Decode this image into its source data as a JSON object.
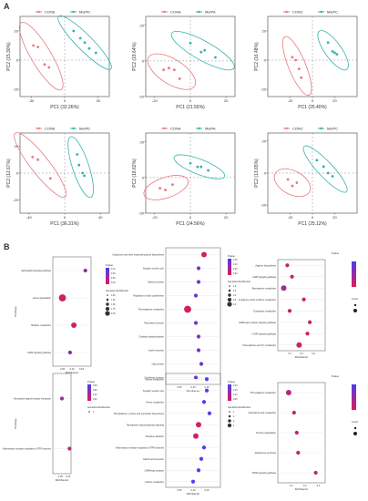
{
  "figure": {
    "panel_a_label": "A",
    "panel_b_label": "B"
  },
  "chart_data": [
    {
      "id": "pca1",
      "type": "scatter",
      "legend": [
        "CONE",
        "MeiPD"
      ],
      "colors": [
        "#e8787a",
        "#2fb5a6"
      ],
      "xlabel": "PC1 (32.26%)",
      "ylabel": "PC2 (15.30%)",
      "xlim": [
        -40,
        40
      ],
      "ylim": [
        -25,
        30
      ],
      "xticks": [
        "-30",
        "0",
        "30"
      ],
      "yticks": [
        "-20",
        "0",
        "20"
      ],
      "series": [
        {
          "name": "CONE",
          "x": [
            -28,
            -24,
            -18,
            -14
          ],
          "y": [
            10,
            9,
            -3,
            -5
          ]
        },
        {
          "name": "MeiPD",
          "x": [
            8,
            14,
            18,
            22,
            28
          ],
          "y": [
            20,
            15,
            12,
            8,
            5
          ]
        }
      ]
    },
    {
      "id": "pca2",
      "type": "scatter",
      "legend": [
        "CONA",
        "MeiPA"
      ],
      "colors": [
        "#e8787a",
        "#2fb5a6"
      ],
      "xlabel": "PC1 (21.55%)",
      "ylabel": "PC2 (19.64%)",
      "xlim": [
        -25,
        25
      ],
      "ylim": [
        -20,
        25
      ],
      "xticks": [
        "-20",
        "0",
        "20"
      ],
      "yticks": [
        "-20",
        "0",
        "20"
      ],
      "series": [
        {
          "name": "CONA",
          "x": [
            -15,
            -12,
            -9,
            -6
          ],
          "y": [
            -5,
            -4,
            -5,
            -10
          ]
        },
        {
          "name": "MeiPA",
          "x": [
            0,
            6,
            8,
            14
          ],
          "y": [
            10,
            5,
            6,
            2
          ]
        }
      ]
    },
    {
      "id": "pca3",
      "type": "scatter",
      "legend": [
        "CONC",
        "MeiPC"
      ],
      "colors": [
        "#e8787a",
        "#2fb5a6"
      ],
      "xlabel": "PC1 (25.40%)",
      "ylabel": "PC2 (16.48%)",
      "xlim": [
        -40,
        40
      ],
      "ylim": [
        -25,
        30
      ],
      "xticks": [
        "-20",
        "0",
        "20"
      ],
      "yticks": [
        "-20",
        "0",
        "20"
      ],
      "series": [
        {
          "name": "CONC",
          "x": [
            -18,
            -15,
            -12,
            -10
          ],
          "y": [
            2,
            0,
            -6,
            -12
          ]
        },
        {
          "name": "MeiPC",
          "x": [
            14,
            18,
            20,
            22
          ],
          "y": [
            12,
            6,
            5,
            4
          ]
        }
      ]
    },
    {
      "id": "pca4",
      "type": "scatter",
      "legend": [
        "CONE",
        "MeiPD"
      ],
      "colors": [
        "#e8787a",
        "#2fb5a6"
      ],
      "xlabel": "PC1 (36.31%)",
      "ylabel": "PC2 (12.67%)",
      "xlim": [
        -50,
        50
      ],
      "ylim": [
        -30,
        30
      ],
      "xticks": [
        "-40",
        "0",
        "40"
      ],
      "yticks": [
        "-20",
        "0",
        "20"
      ],
      "series": [
        {
          "name": "CONE",
          "x": [
            -36,
            -30,
            -16
          ],
          "y": [
            12,
            10,
            -4
          ]
        },
        {
          "name": "MeiPD",
          "x": [
            14,
            16,
            20,
            22
          ],
          "y": [
            14,
            6,
            0,
            -2
          ]
        }
      ]
    },
    {
      "id": "pca5",
      "type": "scatter",
      "legend": [
        "CONA",
        "MeiPA"
      ],
      "colors": [
        "#e8787a",
        "#2fb5a6"
      ],
      "xlabel": "PC1 (24.56%)",
      "ylabel": "PC2 (18.62%)",
      "xlim": [
        -25,
        25
      ],
      "ylim": [
        -20,
        25
      ],
      "xticks": [
        "-20",
        "0",
        "20"
      ],
      "yticks": [
        "-20",
        "0",
        "20"
      ],
      "series": [
        {
          "name": "CONA",
          "x": [
            -17,
            -14,
            -10
          ],
          "y": [
            -6,
            -7,
            -4
          ]
        },
        {
          "name": "MeiPA",
          "x": [
            0,
            4,
            6,
            10
          ],
          "y": [
            8,
            6,
            6,
            4
          ]
        }
      ]
    },
    {
      "id": "pca6",
      "type": "scatter",
      "legend": [
        "CONC",
        "MeiPC"
      ],
      "colors": [
        "#e8787a",
        "#2fb5a6"
      ],
      "xlabel": "PC1 (25.12%)",
      "ylabel": "PC2 (13.65%)",
      "xlim": [
        -40,
        40
      ],
      "ylim": [
        -25,
        25
      ],
      "xticks": [
        "-20",
        "0",
        "20"
      ],
      "yticks": [
        "-20",
        "0",
        "20"
      ],
      "series": [
        {
          "name": "CONC",
          "x": [
            -22,
            -18,
            -14
          ],
          "y": [
            -4,
            -8,
            -6
          ]
        },
        {
          "name": "MeiPC",
          "x": [
            4,
            10,
            14,
            18
          ],
          "y": [
            8,
            4,
            0,
            -2
          ]
        }
      ]
    },
    {
      "id": "bub1",
      "type": "scatter",
      "subtype": "bubble",
      "xlabel": "RichFactor",
      "ylabel": "Pathway",
      "xticks": [
        "0.05",
        "0.10",
        "0.15"
      ],
      "xlim": [
        0.0,
        0.2
      ],
      "categories": [
        "Sphingolipid signaling pathway",
        "Lysine degradation",
        "Histidine metabolism",
        "cAMP signaling pathway"
      ],
      "values": [
        0.17,
        0.05,
        0.11,
        0.09
      ],
      "sizes": [
        1,
        3,
        2,
        1
      ],
      "pvalue": [
        0.1,
        0.02,
        0.03,
        0.12
      ],
      "legend_title_color": "Pvalue",
      "legend_title_size": "GeneNumberMember",
      "color_legend_ticks": [
        "0.12",
        "0.09",
        "0.06",
        "0.03"
      ],
      "size_legend_ticks": [
        "1.00",
        "1.25",
        "1.50",
        "1.75",
        "2.00"
      ]
    },
    {
      "id": "bub2",
      "type": "scatter",
      "subtype": "bubble",
      "xlabel": "RichFactor",
      "ylabel": "",
      "xticks": [
        "0.05",
        "0.10",
        "0.15"
      ],
      "xlim": [
        0.0,
        0.2
      ],
      "categories": [
        "Ubiquinone and other terpenoid-quinone biosynthesis",
        "Synaptic vesicle cycle",
        "Gastric secretion",
        "Regulation of actin cytoskeleton",
        "Phenylalanine metabolism",
        "Pancreatic secretion",
        "Oxidative phosphorylation",
        "Insulin secretion",
        "Gap junction",
        "Cholinergic synapse"
      ],
      "values": [
        0.14,
        0.12,
        0.12,
        0.11,
        0.08,
        0.11,
        0.12,
        0.12,
        0.13,
        0.11
      ],
      "sizes": [
        2,
        1,
        1,
        1,
        3,
        1,
        1,
        1,
        1,
        1
      ],
      "pvalue": [
        0.02,
        0.15,
        0.15,
        0.16,
        0.01,
        0.15,
        0.14,
        0.15,
        0.16,
        0.16
      ],
      "legend_title_color": "Pvalue",
      "legend_title_size": "GeneNumberMember",
      "color_legend_ticks": [
        "0.15",
        "0.10",
        "0.05",
        "0.00"
      ],
      "size_legend_ticks": [
        "1.0",
        "1.5",
        "2.0",
        "2.5",
        "3.0"
      ]
    },
    {
      "id": "bub3",
      "type": "scatter",
      "subtype": "bubble",
      "xlabel": "RichFactor",
      "ylabel": "",
      "xticks": [
        "0.1",
        "0.2",
        "0.3"
      ],
      "xlim": [
        0.0,
        0.4
      ],
      "categories": [
        "Arginine biosynthesis",
        "cAMP signaling pathway",
        "Beta-alanine metabolism",
        "D-Arginine and D-ornithine metabolism",
        "Tryptophan metabolism",
        "GABAergic synapse signaling pathway",
        "mTOR signaling pathway",
        "Phenylalanine and Tyr metabolism"
      ],
      "values": [
        0.08,
        0.12,
        0.05,
        0.22,
        0.1,
        0.27,
        0.25,
        0.18
      ],
      "sizes": [
        1,
        1,
        2,
        1,
        1,
        1,
        1,
        2
      ],
      "pvalue": [
        0.05,
        0.05,
        0.08,
        0.02,
        0.03,
        0.02,
        0.02,
        0.03
      ],
      "legend_title_color": "Pvalue",
      "legend_title_size": "Count",
      "color_legend_ticks": [],
      "size_legend_ticks": []
    },
    {
      "id": "bub4",
      "type": "scatter",
      "subtype": "bubble",
      "xlabel": "RichFactor",
      "ylabel": "Pathway",
      "xticks": [
        "0.05",
        "0.10"
      ],
      "xlim": [
        0.0,
        0.12
      ],
      "categories": [
        "Neuroactive ligand-receptor interaction",
        "Inflammatory mediator regulation of TRP channels"
      ],
      "values": [
        0.06,
        0.11
      ],
      "sizes": [
        1,
        1
      ],
      "pvalue": [
        0.1,
        0.05
      ],
      "legend_title_color": "Pvalue",
      "legend_title_size": "GeneNumberMember",
      "color_legend_ticks": [
        "0.08",
        "0.06",
        "0.04",
        "0.02"
      ],
      "size_legend_ticks": [
        "1"
      ]
    },
    {
      "id": "bub5",
      "type": "scatter",
      "subtype": "bubble",
      "xlabel": "RichFactor",
      "ylabel": "",
      "xticks": [
        "0.05",
        "0.10",
        "0.15"
      ],
      "xlim": [
        0.0,
        0.2
      ],
      "categories": [
        "Taurine metabolism",
        "Synaptic vesicle cycle",
        "Purine metabolism",
        "Phenylalanine, tyrosine and tryptophan biosynthesis",
        "Retrograde endocannabinoid signaling",
        "Morphine addiction",
        "Inflammatory mediator regulation of TRP channels",
        "Gastric acid secretion",
        "GABAergic synapse",
        "Carbon metabolism"
      ],
      "values": [
        0.15,
        0.15,
        0.14,
        0.16,
        0.12,
        0.11,
        0.14,
        0.13,
        0.12,
        0.1
      ],
      "sizes": [
        1,
        1,
        1,
        1,
        2,
        2,
        1,
        1,
        1,
        1
      ],
      "pvalue": [
        0.2,
        0.2,
        0.2,
        0.18,
        0.01,
        0.02,
        0.2,
        0.2,
        0.2,
        0.21
      ],
      "legend_title_color": "Pvalue",
      "legend_title_size": "GeneNumberMember",
      "color_legend_ticks": [
        "0.20",
        "0.15",
        "0.10",
        "0.05"
      ],
      "size_legend_ticks": [
        "1",
        "2",
        "3",
        "4"
      ]
    },
    {
      "id": "bub6",
      "type": "scatter",
      "subtype": "bubble",
      "xlabel": "RichFactor",
      "ylabel": "",
      "xticks": [
        "0.1",
        "0.2",
        "0.3"
      ],
      "xlim": [
        0.0,
        0.35
      ],
      "categories": [
        "Phenylalanine metabolism",
        "Arachidonic acid metabolism",
        "Tyrosine degradation",
        "Aldosterone synthesis",
        "PPAR signaling pathway"
      ],
      "values": [
        0.08,
        0.12,
        0.14,
        0.15,
        0.28
      ],
      "sizes": [
        2,
        1,
        1,
        1,
        1
      ],
      "pvalue": [
        0.05,
        0.05,
        0.05,
        0.05,
        0.05
      ],
      "legend_title_color": "Pvalue",
      "legend_title_size": "Count",
      "color_legend_ticks": [],
      "size_legend_ticks": []
    }
  ]
}
